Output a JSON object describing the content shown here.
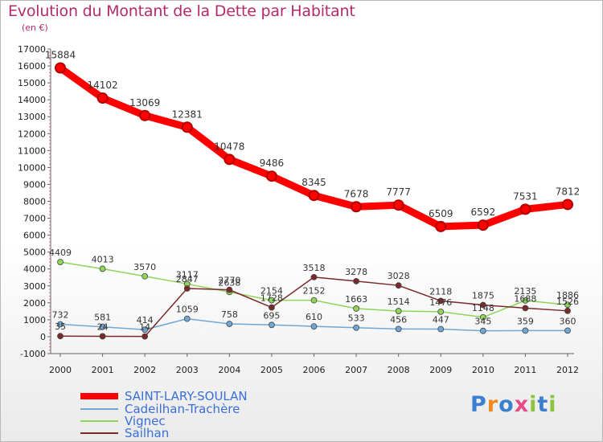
{
  "title": "Evolution du Montant de la Dette par Habitant",
  "subtitle": "(en €)",
  "logo_text": "Proxiti",
  "chart_data": {
    "type": "line",
    "x": [
      "2000",
      "2001",
      "2002",
      "2003",
      "2004",
      "2005",
      "2006",
      "2007",
      "2008",
      "2009",
      "2010",
      "2011",
      "2012"
    ],
    "ylim": [
      -1000,
      17000
    ],
    "y_ticks": [
      -1000,
      0,
      1000,
      2000,
      3000,
      4000,
      5000,
      6000,
      7000,
      8000,
      9000,
      10000,
      11000,
      12000,
      13000,
      14000,
      15000,
      16000,
      17000
    ],
    "grid": false,
    "legend_position": "bottom-left",
    "series": [
      {
        "name": "SAINT-LARY-SOULAN",
        "color": "#ff0000",
        "values": [
          15884,
          14102,
          13069,
          12381,
          10478,
          9486,
          8345,
          7678,
          7777,
          6509,
          6592,
          7531,
          7812
        ]
      },
      {
        "name": "Cadeilhan-Trachère",
        "color": "#6fa7d6",
        "values": [
          732,
          581,
          414,
          1059,
          758,
          695,
          610,
          533,
          456,
          447,
          345,
          359,
          360
        ]
      },
      {
        "name": "Vignec",
        "color": "#8ed55a",
        "values": [
          4409,
          4013,
          3570,
          3117,
          2638,
          2154,
          2152,
          1663,
          1514,
          1476,
          1148,
          2135,
          1886
        ]
      },
      {
        "name": "Sailhan",
        "color": "#7a2a2a",
        "values": [
          35,
          24,
          14,
          2847,
          2770,
          1728,
          3518,
          3278,
          3028,
          2118,
          1875,
          1688,
          1526
        ]
      }
    ]
  }
}
